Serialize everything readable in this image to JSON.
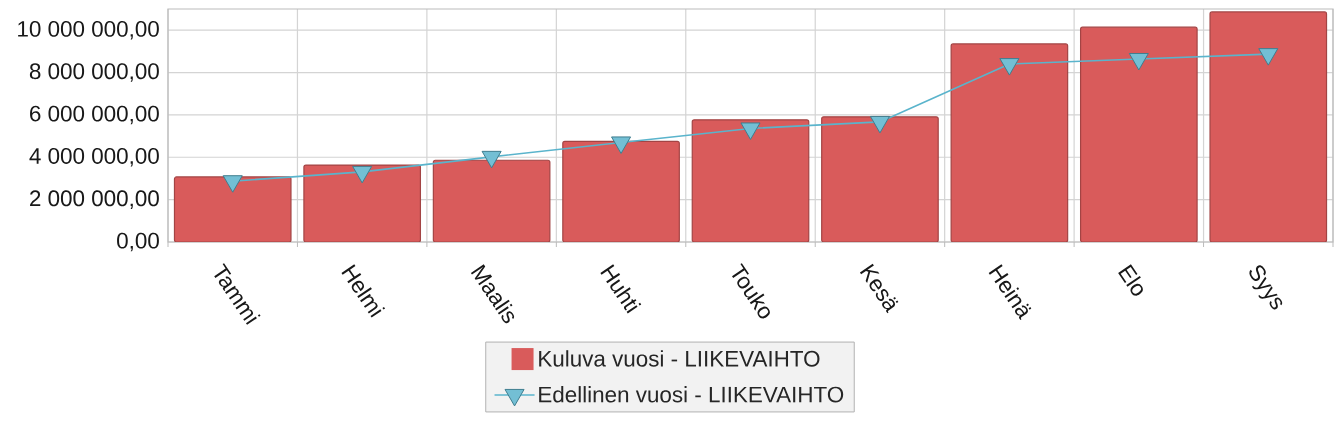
{
  "chart_data": {
    "type": "bar",
    "categories": [
      "Tammi",
      "Helmi",
      "Maalis",
      "Huhti",
      "Touko",
      "Kesä",
      "Heinä",
      "Elo",
      "Syys"
    ],
    "series": [
      {
        "name": "Kuluva vuosi - LIIKEVAIHTO",
        "color": "#d95b5b",
        "values": [
          3070000,
          3630000,
          3860000,
          4750000,
          5770000,
          5910000,
          9350000,
          10140000,
          10860000
        ]
      },
      {
        "name": "Edellinen vuosi - LIIKEVAIHTO",
        "type": "line",
        "color": "#5ab4cc",
        "marker": "triangle",
        "values": [
          2870000,
          3310000,
          4020000,
          4700000,
          5360000,
          5670000,
          8400000,
          8640000,
          8870000
        ]
      }
    ],
    "ylim": [
      0,
      11000000
    ],
    "yticks": [
      {
        "value": 0,
        "label": "0,00"
      },
      {
        "value": 2000000,
        "label": "2 000 000,00"
      },
      {
        "value": 4000000,
        "label": "4 000 000,00"
      },
      {
        "value": 6000000,
        "label": "6 000 000,00"
      },
      {
        "value": 8000000,
        "label": "8 000 000,00"
      },
      {
        "value": 10000000,
        "label": "10 000 000,00"
      }
    ],
    "grid": true,
    "legend": "bottom"
  }
}
